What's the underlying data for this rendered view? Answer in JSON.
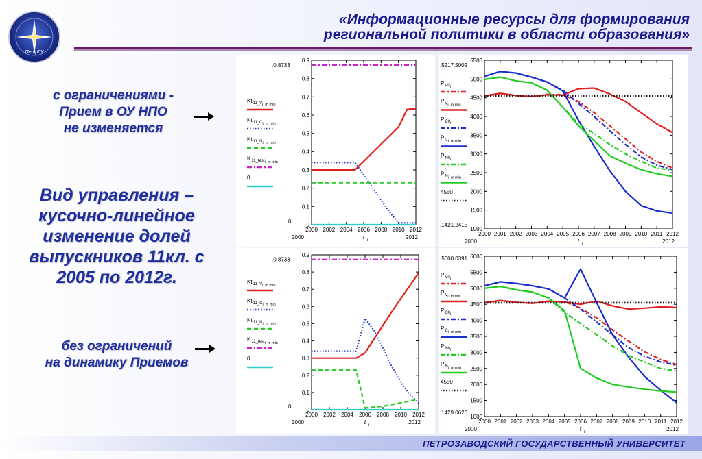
{
  "header": {
    "title_line1": "«Информационные ресурсы для формирования",
    "title_line2": "региональной политики в области образования»"
  },
  "logo": {
    "label": "ПетрГУ"
  },
  "annotations": {
    "with_limits": [
      "с ограничениями -",
      "Прием в ОУ НПО",
      "не изменяется"
    ],
    "control_type": [
      "Вид управления –",
      "кусочно-линейное",
      "изменение долей",
      "выпускников 11кл. с",
      "2005 по 2012г."
    ],
    "no_limits": [
      "без ограничений",
      "на динамику Приемов"
    ]
  },
  "footer": {
    "text": "ПЕТРОЗАВОДСКИЙ ГОСУДАРСТВЕННЫЙ УНИВЕРСИТЕТ"
  },
  "colors": {
    "red": "#e02020",
    "blue": "#1a2fd0",
    "green": "#22cc22",
    "magenta": "#cc22cc",
    "cyan": "#33cccc",
    "black": "#111111",
    "title": "#1a1a8c",
    "rule": "#6a1a6a"
  },
  "chart_data": [
    {
      "id": "shares-top",
      "type": "line",
      "x": [
        2000,
        2001,
        2002,
        2003,
        2004,
        2005,
        2006,
        2007,
        2008,
        2009,
        2010,
        2011,
        2012
      ],
      "xticks": [
        "2000",
        "2002",
        "2004",
        "2006",
        "2008",
        "2010",
        "2012"
      ],
      "ylim": [
        0,
        0.9
      ],
      "yticks": [
        "0",
        "0.1",
        "0.2",
        "0.3",
        "0.4",
        "0.5",
        "0.6",
        "0.7",
        "0.8",
        "0.9"
      ],
      "ymax_label": ".0.8733",
      "ymin_label": "0.",
      "xmin_label": "2000",
      "xmax_label": "2012",
      "xlabel": "t",
      "xlabel_sub": "i",
      "series": [
        {
          "name": "Kt",
          "sub": "11_V",
          "sub2": "i, m min",
          "color": "red",
          "dash": "solid",
          "values": [
            0.3,
            0.3,
            0.3,
            0.3,
            0.3,
            0.3,
            0.347,
            0.394,
            0.441,
            0.488,
            0.535,
            0.6315,
            0.635
          ]
        },
        {
          "name": "Kt",
          "sub": "11_C",
          "sub2": "i, m min",
          "color": "blue",
          "dash": "dot",
          "values": [
            0.34,
            0.34,
            0.34,
            0.34,
            0.34,
            0.34,
            0.272,
            0.204,
            0.136,
            0.068,
            0.01,
            0.01,
            0.01
          ]
        },
        {
          "name": "Kt",
          "sub": "11_N",
          "sub2": "i, m min",
          "color": "green",
          "dash": "dash",
          "values": [
            0.23,
            0.23,
            0.23,
            0.23,
            0.23,
            0.23,
            0.23,
            0.23,
            0.23,
            0.23,
            0.23,
            0.23,
            0.23
          ]
        },
        {
          "name": "K",
          "sub": "11_test",
          "sub2": "i, m min",
          "color": "magenta",
          "dash": "dashdot",
          "values": [
            0.8733,
            0.8733,
            0.8733,
            0.8733,
            0.8733,
            0.8733,
            0.8733,
            0.8733,
            0.8733,
            0.8733,
            0.8733,
            0.8733,
            0.8733
          ]
        },
        {
          "name": "0",
          "sub": "",
          "sub2": "",
          "color": "cyan",
          "dash": "solid",
          "values": [
            0,
            0,
            0,
            0,
            0,
            0,
            0,
            0,
            0,
            0,
            0,
            0,
            0
          ]
        }
      ]
    },
    {
      "id": "population-top",
      "type": "line",
      "x": [
        2000,
        2001,
        2002,
        2003,
        2004,
        2005,
        2006,
        2007,
        2008,
        2009,
        2010,
        2011,
        2012
      ],
      "xticks": [
        "2000",
        "2001",
        "2002",
        "2003",
        "2004",
        "2005",
        "2006",
        "2007",
        "2008",
        "2009",
        "2010",
        "2011",
        "2012"
      ],
      "ylim": [
        1000,
        5500
      ],
      "yticks": [
        "1000",
        "1500",
        "2000",
        "2500",
        "3000",
        "3500",
        "4000",
        "4500",
        "5000",
        "5500"
      ],
      "ymax_label": ".5217.5002",
      "ymin_label": ".1421.2415",
      "xmin_label": "2000",
      "xmax_label": "2012",
      "xlabel": "t",
      "xlabel_sub": "i",
      "series": [
        {
          "name": "P",
          "sub": "V0",
          "sub2": "i",
          "color": "red",
          "dash": "dashdot",
          "values": [
            4550,
            4600,
            4560,
            4530,
            4590,
            4580,
            4400,
            4100,
            3750,
            3400,
            3050,
            2800,
            2620
          ]
        },
        {
          "name": "P",
          "sub": "V",
          "sub2": "i, m min",
          "color": "red",
          "dash": "solid",
          "values": [
            4550,
            4620,
            4560,
            4530,
            4580,
            4570,
            4740,
            4760,
            4600,
            4400,
            4100,
            3800,
            3570
          ]
        },
        {
          "name": "P",
          "sub": "C0",
          "sub2": "i",
          "color": "blue",
          "dash": "dashdot",
          "values": [
            5070,
            5200,
            5160,
            5050,
            4920,
            4700,
            4350,
            4000,
            3620,
            3250,
            2920,
            2700,
            2580
          ]
        },
        {
          "name": "P",
          "sub": "C",
          "sub2": "i, m min",
          "color": "blue",
          "dash": "solid",
          "values": [
            5070,
            5200,
            5160,
            5050,
            4920,
            4680,
            3900,
            3200,
            2550,
            2000,
            1620,
            1480,
            1420
          ]
        },
        {
          "name": "P",
          "sub": "N0",
          "sub2": "i",
          "color": "green",
          "dash": "dashdot",
          "values": [
            4990,
            5050,
            4950,
            4900,
            4700,
            4250,
            3800,
            3550,
            3250,
            3000,
            2800,
            2620,
            2570
          ]
        },
        {
          "name": "P",
          "sub": "N",
          "sub2": "i, m min",
          "color": "green",
          "dash": "solid",
          "values": [
            4990,
            5050,
            4950,
            4900,
            4700,
            4250,
            3750,
            3350,
            2950,
            2750,
            2580,
            2470,
            2400
          ]
        },
        {
          "name": "4550",
          "sub": "",
          "sub2": "",
          "color": "black",
          "dash": "dot",
          "values": [
            4550,
            4550,
            4550,
            4550,
            4550,
            4550,
            4550,
            4550,
            4550,
            4550,
            4550,
            4550,
            4550
          ]
        }
      ]
    },
    {
      "id": "shares-bottom",
      "type": "line",
      "x": [
        2000,
        2001,
        2002,
        2003,
        2004,
        2005,
        2006,
        2007,
        2008,
        2009,
        2010,
        2011,
        2012
      ],
      "xticks": [
        "2000",
        "2002",
        "2004",
        "2006",
        "2008",
        "2010",
        "2012"
      ],
      "ylim": [
        0,
        0.9
      ],
      "yticks": [
        "0",
        "0.1",
        "0.2",
        "0.3",
        "0.4",
        "0.5",
        "0.6",
        "0.7",
        "0.8",
        "0.9"
      ],
      "ymax_label": ".0.8733",
      "ymin_label": "0.",
      "xmin_label": "2000",
      "xmax_label": "2012",
      "xlabel": "t",
      "xlabel_sub": "i",
      "series": [
        {
          "name": "Kt",
          "sub": "11_V",
          "sub2": "i, m min",
          "color": "red",
          "dash": "solid",
          "values": [
            0.3,
            0.3,
            0.3,
            0.3,
            0.3,
            0.3,
            0.33,
            0.41,
            0.49,
            0.57,
            0.645,
            0.72,
            0.795
          ]
        },
        {
          "name": "Kt",
          "sub": "11_C",
          "sub2": "i, m min",
          "color": "blue",
          "dash": "dot",
          "values": [
            0.34,
            0.34,
            0.34,
            0.34,
            0.34,
            0.34,
            0.53,
            0.46,
            0.36,
            0.25,
            0.16,
            0.09,
            0.04
          ]
        },
        {
          "name": "Kt",
          "sub": "11_N",
          "sub2": "i, m min",
          "color": "green",
          "dash": "dash",
          "values": [
            0.23,
            0.23,
            0.23,
            0.23,
            0.23,
            0.23,
            0.01,
            0.015,
            0.02,
            0.03,
            0.04,
            0.05,
            0.06
          ]
        },
        {
          "name": "K",
          "sub": "11_test",
          "sub2": "i, m min",
          "color": "magenta",
          "dash": "dashdot",
          "values": [
            0.8733,
            0.8733,
            0.8733,
            0.8733,
            0.8733,
            0.8733,
            0.8733,
            0.8733,
            0.8733,
            0.8733,
            0.8733,
            0.8733,
            0.8733
          ]
        },
        {
          "name": "0",
          "sub": "",
          "sub2": "",
          "color": "cyan",
          "dash": "solid",
          "values": [
            0,
            0,
            0,
            0,
            0,
            0,
            0,
            0,
            0,
            0,
            0,
            0,
            0
          ]
        }
      ]
    },
    {
      "id": "population-bottom",
      "type": "line",
      "x": [
        2000,
        2001,
        2002,
        2003,
        2004,
        2005,
        2006,
        2007,
        2008,
        2009,
        2010,
        2011,
        2012
      ],
      "xticks": [
        "2000",
        "2001",
        "2002",
        "2003",
        "2004",
        "2005",
        "2006",
        "2007",
        "2008",
        "2009",
        "2010",
        "2011",
        "2012"
      ],
      "ylim": [
        1000,
        6000
      ],
      "yticks": [
        "1000",
        "1500",
        "2000",
        "2500",
        "3000",
        "3500",
        "4000",
        "4500",
        "5000",
        "5500",
        "6000"
      ],
      "ymax_label": ".5600.0391",
      "ymin_label": ".1429.0626",
      "xmin_label": "2000",
      "xmax_label": "2012",
      "xlabel": "t",
      "xlabel_sub": "i",
      "series": [
        {
          "name": "P",
          "sub": "V0",
          "sub2": "i",
          "color": "red",
          "dash": "dashdot",
          "values": [
            4550,
            4620,
            4560,
            4530,
            4590,
            4580,
            4380,
            4080,
            3700,
            3350,
            3020,
            2780,
            2620
          ]
        },
        {
          "name": "P",
          "sub": "V",
          "sub2": "i, m min",
          "color": "red",
          "dash": "solid",
          "values": [
            4550,
            4620,
            4560,
            4530,
            4600,
            4570,
            4500,
            4600,
            4450,
            4350,
            4380,
            4420,
            4400
          ]
        },
        {
          "name": "P",
          "sub": "C0",
          "sub2": "i",
          "color": "blue",
          "dash": "dashdot",
          "values": [
            5080,
            5200,
            5150,
            5080,
            4980,
            4700,
            4350,
            3950,
            3550,
            3150,
            2880,
            2700,
            2600
          ]
        },
        {
          "name": "P",
          "sub": "C",
          "sub2": "i, m min",
          "color": "blue",
          "dash": "solid",
          "values": [
            5080,
            5200,
            5150,
            5080,
            4980,
            4700,
            5600,
            4560,
            3550,
            2850,
            2250,
            1820,
            1430
          ]
        },
        {
          "name": "P",
          "sub": "N0",
          "sub2": "i",
          "color": "green",
          "dash": "dashdot",
          "values": [
            5000,
            5060,
            4950,
            4880,
            4700,
            4250,
            3900,
            3550,
            3200,
            2900,
            2700,
            2500,
            2420
          ]
        },
        {
          "name": "P",
          "sub": "N",
          "sub2": "i, m min",
          "color": "green",
          "dash": "solid",
          "values": [
            5000,
            5060,
            4950,
            4880,
            4700,
            4300,
            2500,
            2200,
            2000,
            1920,
            1850,
            1800,
            1760
          ]
        },
        {
          "name": "4550",
          "sub": "",
          "sub2": "",
          "color": "black",
          "dash": "dot",
          "values": [
            4550,
            4550,
            4550,
            4550,
            4550,
            4550,
            4550,
            4550,
            4550,
            4550,
            4550,
            4550,
            4550
          ]
        }
      ]
    }
  ]
}
